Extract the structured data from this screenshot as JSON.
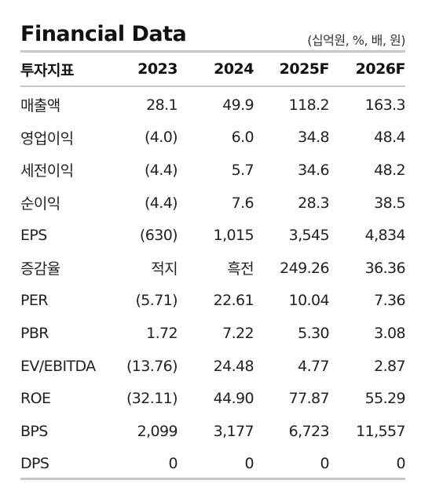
{
  "title": "Financial Data",
  "unit_note": "(십억원, %, 배, 원)",
  "header": [
    "투자지표",
    "2023",
    "2024",
    "2025F",
    "2026F"
  ],
  "rows": [
    {
      "label": "매출액",
      "values": [
        "28.1",
        "49.9",
        "118.2",
        "163.3"
      ]
    },
    {
      "label": "영업이익",
      "values": [
        "(4.0)",
        "6.0",
        "34.8",
        "48.4"
      ]
    },
    {
      "label": "세전이익",
      "values": [
        "(4.4)",
        "5.7",
        "34.6",
        "48.2"
      ]
    },
    {
      "label": "순이익",
      "values": [
        "(4.4)",
        "7.6",
        "28.3",
        "38.5"
      ]
    },
    {
      "label": "EPS",
      "values": [
        "(630)",
        "1,015",
        "3,545",
        "4,834"
      ]
    },
    {
      "label": "증감율",
      "values": [
        "적지",
        "흑전",
        "249.26",
        "36.36"
      ]
    },
    {
      "label": "PER",
      "values": [
        "(5.71)",
        "22.61",
        "10.04",
        "7.36"
      ]
    },
    {
      "label": "PBR",
      "values": [
        "1.72",
        "7.22",
        "5.30",
        "3.08"
      ]
    },
    {
      "label": "EV/EBITDA",
      "values": [
        "(13.76)",
        "24.48",
        "4.77",
        "2.87"
      ]
    },
    {
      "label": "ROE",
      "values": [
        "(32.11)",
        "44.90",
        "77.87",
        "55.29"
      ]
    },
    {
      "label": "BPS",
      "values": [
        "2,099",
        "3,177",
        "6,723",
        "11,557"
      ]
    },
    {
      "label": "DPS",
      "values": [
        "0",
        "0",
        "0",
        "0"
      ]
    }
  ]
}
